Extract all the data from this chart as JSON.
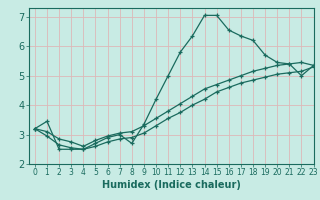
{
  "xlabel": "Humidex (Indice chaleur)",
  "ylabel": "",
  "bg_color": "#c8ebe4",
  "line_color": "#1a6b5e",
  "grid_color": "#ddb8b8",
  "xlim": [
    -0.5,
    23
  ],
  "ylim": [
    2,
    7.3
  ],
  "xticks": [
    0,
    1,
    2,
    3,
    4,
    5,
    6,
    7,
    8,
    9,
    10,
    11,
    12,
    13,
    14,
    15,
    16,
    17,
    18,
    19,
    20,
    21,
    22,
    23
  ],
  "yticks": [
    2,
    3,
    4,
    5,
    6,
    7
  ],
  "line1_x": [
    0,
    1,
    2,
    3,
    4,
    5,
    6,
    7,
    8,
    9,
    10,
    11,
    12,
    13,
    14,
    15,
    16,
    17,
    18,
    19,
    20,
    21,
    22,
    23
  ],
  "line1_y": [
    3.2,
    3.45,
    2.5,
    2.5,
    2.5,
    2.7,
    2.9,
    3.0,
    2.7,
    3.35,
    4.2,
    5.0,
    5.8,
    6.35,
    7.05,
    7.05,
    6.55,
    6.35,
    6.2,
    5.7,
    5.45,
    5.4,
    5.0,
    5.35
  ],
  "line2_x": [
    0,
    1,
    2,
    3,
    4,
    5,
    6,
    7,
    8,
    9,
    10,
    11,
    12,
    13,
    14,
    15,
    16,
    17,
    18,
    19,
    20,
    21,
    22,
    23
  ],
  "line2_y": [
    3.2,
    3.1,
    2.85,
    2.75,
    2.6,
    2.8,
    2.95,
    3.05,
    3.1,
    3.3,
    3.55,
    3.8,
    4.05,
    4.3,
    4.55,
    4.7,
    4.85,
    5.0,
    5.15,
    5.25,
    5.35,
    5.4,
    5.45,
    5.35
  ],
  "line3_x": [
    0,
    1,
    2,
    3,
    4,
    5,
    6,
    7,
    8,
    9,
    10,
    11,
    12,
    13,
    14,
    15,
    16,
    17,
    18,
    19,
    20,
    21,
    22,
    23
  ],
  "line3_y": [
    3.2,
    2.95,
    2.65,
    2.55,
    2.5,
    2.6,
    2.75,
    2.85,
    2.9,
    3.05,
    3.3,
    3.55,
    3.75,
    4.0,
    4.2,
    4.45,
    4.6,
    4.75,
    4.85,
    4.95,
    5.05,
    5.1,
    5.15,
    5.3
  ],
  "xlabel_fontsize": 7,
  "tick_fontsize_x": 5.5,
  "tick_fontsize_y": 7
}
